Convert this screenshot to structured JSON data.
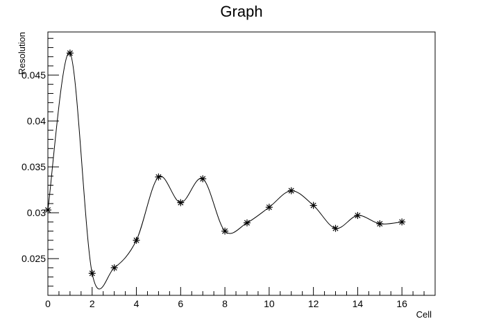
{
  "chart_data": {
    "type": "line",
    "title": "Graph",
    "xlabel": "Cell",
    "ylabel": "Resolution",
    "xlim": [
      0,
      17.5
    ],
    "ylim": [
      0.021,
      0.0497
    ],
    "x_ticks": [
      0,
      2,
      4,
      6,
      8,
      10,
      12,
      14,
      16
    ],
    "x_tick_labels": [
      "0",
      "2",
      "4",
      "6",
      "8",
      "10",
      "12",
      "14",
      "16"
    ],
    "y_ticks": [
      0.025,
      0.03,
      0.035,
      0.04,
      0.045
    ],
    "y_tick_labels": [
      "0.025",
      "0.03",
      "0.035",
      "0.04",
      "0.045"
    ],
    "grid": false,
    "marker": "asterisk",
    "line": "smooth",
    "color": "#000000",
    "series": [
      {
        "x": [
          0,
          1,
          2,
          3,
          4,
          5,
          6,
          7,
          8,
          9,
          10,
          11,
          12,
          13,
          14,
          15,
          16
        ],
        "values": [
          0.0303,
          0.0474,
          0.0234,
          0.024,
          0.027,
          0.0339,
          0.0311,
          0.0337,
          0.028,
          0.0289,
          0.0306,
          0.0324,
          0.0308,
          0.0283,
          0.0297,
          0.0288,
          0.029
        ]
      }
    ]
  }
}
